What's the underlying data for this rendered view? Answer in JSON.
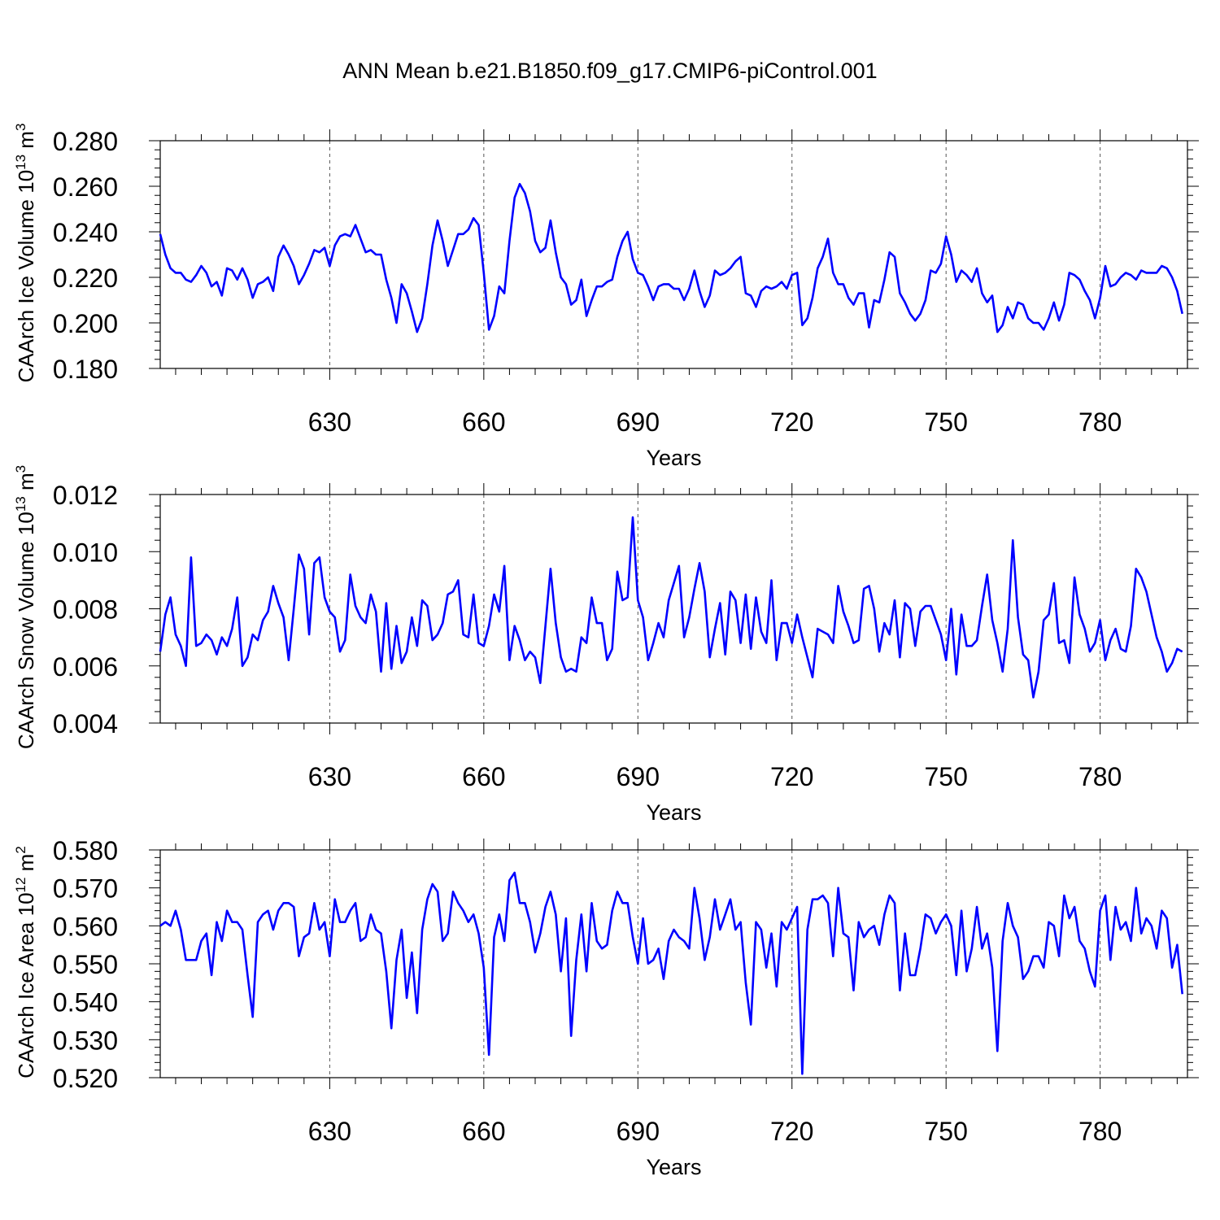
{
  "title": "ANN Mean b.e21.B1850.f09_g17.CMIP6-piControl.001",
  "colors": {
    "series": "#0000ff",
    "axis": "#000000",
    "grid": "#555555"
  },
  "chart_data": [
    {
      "type": "line",
      "ylabel": {
        "main": "CAArch Ice Volume 10",
        "sup": "13",
        "unit": " m",
        "unit_sup": "3"
      },
      "xlabel": "Years",
      "xlim": [
        597,
        797
      ],
      "ylim": [
        0.18,
        0.28
      ],
      "xticks": [
        630,
        660,
        690,
        720,
        750,
        780
      ],
      "yticks": [
        "0.180",
        "0.200",
        "0.220",
        "0.240",
        "0.260",
        "0.280"
      ],
      "grid": "vertical dashed at major x ticks",
      "series": [
        {
          "x_start": 597,
          "x_step": 1,
          "values": [
            0.239,
            0.23,
            0.224,
            0.222,
            0.222,
            0.219,
            0.218,
            0.221,
            0.225,
            0.222,
            0.216,
            0.218,
            0.212,
            0.224,
            0.223,
            0.219,
            0.224,
            0.219,
            0.211,
            0.217,
            0.218,
            0.22,
            0.214,
            0.229,
            0.234,
            0.23,
            0.225,
            0.217,
            0.221,
            0.226,
            0.232,
            0.231,
            0.233,
            0.225,
            0.234,
            0.238,
            0.239,
            0.238,
            0.243,
            0.237,
            0.231,
            0.232,
            0.23,
            0.23,
            0.219,
            0.211,
            0.2,
            0.217,
            0.213,
            0.205,
            0.196,
            0.202,
            0.217,
            0.234,
            0.245,
            0.236,
            0.225,
            0.232,
            0.239,
            0.239,
            0.241,
            0.246,
            0.243,
            0.222,
            0.197,
            0.203,
            0.216,
            0.213,
            0.236,
            0.255,
            0.261,
            0.257,
            0.249,
            0.236,
            0.231,
            0.233,
            0.245,
            0.231,
            0.22,
            0.217,
            0.208,
            0.21,
            0.219,
            0.203,
            0.21,
            0.216,
            0.216,
            0.218,
            0.219,
            0.229,
            0.236,
            0.24,
            0.228,
            0.222,
            0.221,
            0.216,
            0.21,
            0.216,
            0.217,
            0.217,
            0.215,
            0.215,
            0.21,
            0.215,
            0.223,
            0.214,
            0.207,
            0.212,
            0.223,
            0.221,
            0.222,
            0.224,
            0.227,
            0.229,
            0.213,
            0.212,
            0.207,
            0.214,
            0.216,
            0.215,
            0.216,
            0.218,
            0.215,
            0.221,
            0.222,
            0.199,
            0.202,
            0.211,
            0.224,
            0.229,
            0.237,
            0.222,
            0.217,
            0.217,
            0.211,
            0.208,
            0.213,
            0.213,
            0.198,
            0.21,
            0.209,
            0.219,
            0.231,
            0.229,
            0.213,
            0.209,
            0.204,
            0.201,
            0.204,
            0.21,
            0.223,
            0.222,
            0.226,
            0.238,
            0.23,
            0.218,
            0.223,
            0.221,
            0.218,
            0.224,
            0.213,
            0.209,
            0.212,
            0.196,
            0.199,
            0.207,
            0.202,
            0.209,
            0.208,
            0.202,
            0.2,
            0.2,
            0.197,
            0.202,
            0.209,
            0.201,
            0.208,
            0.222,
            0.221,
            0.219,
            0.214,
            0.21,
            0.202,
            0.211,
            0.225,
            0.216,
            0.217,
            0.22,
            0.222,
            0.221,
            0.219,
            0.223,
            0.222,
            0.222,
            0.222,
            0.225,
            0.224,
            0.22,
            0.214,
            0.204
          ]
        }
      ]
    },
    {
      "type": "line",
      "ylabel": {
        "main": "CAArch Snow Volume 10",
        "sup": "13",
        "unit": " m",
        "unit_sup": "3"
      },
      "xlabel": "Years",
      "xlim": [
        597,
        797
      ],
      "ylim": [
        0.004,
        0.012
      ],
      "xticks": [
        630,
        660,
        690,
        720,
        750,
        780
      ],
      "yticks": [
        "0.004",
        "0.006",
        "0.008",
        "0.010",
        "0.012"
      ],
      "grid": "vertical dashed at major x ticks",
      "series": [
        {
          "x_start": 597,
          "x_step": 1,
          "values": [
            0.0065,
            0.0078,
            0.0084,
            0.0071,
            0.0067,
            0.006,
            0.0098,
            0.0067,
            0.0068,
            0.0071,
            0.0069,
            0.0064,
            0.007,
            0.0067,
            0.0073,
            0.0084,
            0.006,
            0.0063,
            0.0071,
            0.0069,
            0.0076,
            0.0079,
            0.0088,
            0.0082,
            0.0077,
            0.0062,
            0.008,
            0.0099,
            0.0094,
            0.0071,
            0.0096,
            0.0098,
            0.0084,
            0.0079,
            0.0077,
            0.0065,
            0.0069,
            0.0092,
            0.0081,
            0.0077,
            0.0075,
            0.0085,
            0.0079,
            0.0058,
            0.0082,
            0.0059,
            0.0074,
            0.0061,
            0.0065,
            0.0077,
            0.0067,
            0.0083,
            0.0081,
            0.0069,
            0.0071,
            0.0075,
            0.0085,
            0.0086,
            0.009,
            0.0071,
            0.007,
            0.0085,
            0.0068,
            0.0067,
            0.0074,
            0.0085,
            0.0079,
            0.0095,
            0.0062,
            0.0074,
            0.0069,
            0.0062,
            0.0065,
            0.0063,
            0.0054,
            0.0074,
            0.0094,
            0.0075,
            0.0063,
            0.0058,
            0.0059,
            0.0058,
            0.007,
            0.0068,
            0.0084,
            0.0075,
            0.0075,
            0.0062,
            0.0066,
            0.0093,
            0.0083,
            0.0084,
            0.0112,
            0.0083,
            0.0077,
            0.0062,
            0.0068,
            0.0075,
            0.007,
            0.0083,
            0.0089,
            0.0095,
            0.007,
            0.0077,
            0.0087,
            0.0096,
            0.0086,
            0.0063,
            0.0073,
            0.0082,
            0.0064,
            0.0086,
            0.0083,
            0.0068,
            0.0085,
            0.0066,
            0.0084,
            0.0072,
            0.0068,
            0.009,
            0.0062,
            0.0075,
            0.0075,
            0.0068,
            0.0078,
            0.007,
            0.0063,
            0.0056,
            0.0073,
            0.0072,
            0.0071,
            0.0068,
            0.0088,
            0.0079,
            0.0074,
            0.0068,
            0.0069,
            0.0087,
            0.0088,
            0.008,
            0.0065,
            0.0075,
            0.0071,
            0.0083,
            0.0063,
            0.0082,
            0.008,
            0.0067,
            0.0079,
            0.0081,
            0.0081,
            0.0076,
            0.0071,
            0.0062,
            0.008,
            0.0057,
            0.0078,
            0.0067,
            0.0067,
            0.0069,
            0.0081,
            0.0092,
            0.0076,
            0.0068,
            0.0058,
            0.0073,
            0.0104,
            0.0077,
            0.0064,
            0.0062,
            0.0049,
            0.0058,
            0.0076,
            0.0078,
            0.0089,
            0.0068,
            0.0069,
            0.0061,
            0.0091,
            0.0078,
            0.0073,
            0.0065,
            0.0068,
            0.0076,
            0.0062,
            0.0069,
            0.0073,
            0.0066,
            0.0065,
            0.0074,
            0.0094,
            0.0091,
            0.0086,
            0.0078,
            0.007,
            0.0065,
            0.0058,
            0.0061,
            0.0066,
            0.0065
          ]
        }
      ]
    },
    {
      "type": "line",
      "ylabel": {
        "main": "CAArch Ice Area 10",
        "sup": "12",
        "unit": " m",
        "unit_sup": "2"
      },
      "xlabel": "Years",
      "xlim": [
        597,
        797
      ],
      "ylim": [
        0.52,
        0.58
      ],
      "xticks": [
        630,
        660,
        690,
        720,
        750,
        780
      ],
      "yticks": [
        "0.520",
        "0.530",
        "0.540",
        "0.550",
        "0.560",
        "0.570",
        "0.580"
      ],
      "grid": "vertical dashed at major x ticks",
      "series": [
        {
          "x_start": 597,
          "x_step": 1,
          "values": [
            0.56,
            0.561,
            0.56,
            0.564,
            0.559,
            0.551,
            0.551,
            0.551,
            0.556,
            0.558,
            0.547,
            0.561,
            0.556,
            0.564,
            0.561,
            0.561,
            0.559,
            0.547,
            0.536,
            0.561,
            0.563,
            0.564,
            0.559,
            0.564,
            0.566,
            0.566,
            0.565,
            0.552,
            0.557,
            0.558,
            0.566,
            0.559,
            0.561,
            0.552,
            0.567,
            0.561,
            0.561,
            0.564,
            0.566,
            0.556,
            0.557,
            0.563,
            0.559,
            0.558,
            0.548,
            0.533,
            0.551,
            0.559,
            0.541,
            0.553,
            0.537,
            0.559,
            0.567,
            0.571,
            0.569,
            0.556,
            0.558,
            0.569,
            0.566,
            0.564,
            0.561,
            0.563,
            0.558,
            0.549,
            0.526,
            0.557,
            0.563,
            0.556,
            0.572,
            0.574,
            0.566,
            0.566,
            0.561,
            0.553,
            0.558,
            0.565,
            0.569,
            0.563,
            0.548,
            0.562,
            0.531,
            0.551,
            0.563,
            0.548,
            0.566,
            0.556,
            0.554,
            0.555,
            0.564,
            0.569,
            0.566,
            0.566,
            0.557,
            0.55,
            0.562,
            0.55,
            0.551,
            0.554,
            0.546,
            0.556,
            0.559,
            0.557,
            0.556,
            0.554,
            0.57,
            0.562,
            0.551,
            0.557,
            0.567,
            0.559,
            0.563,
            0.567,
            0.559,
            0.561,
            0.545,
            0.534,
            0.561,
            0.559,
            0.549,
            0.558,
            0.544,
            0.561,
            0.559,
            0.562,
            0.565,
            0.521,
            0.559,
            0.567,
            0.567,
            0.568,
            0.566,
            0.552,
            0.57,
            0.558,
            0.557,
            0.543,
            0.561,
            0.557,
            0.559,
            0.56,
            0.555,
            0.563,
            0.568,
            0.566,
            0.543,
            0.558,
            0.547,
            0.547,
            0.554,
            0.563,
            0.562,
            0.558,
            0.561,
            0.563,
            0.56,
            0.547,
            0.564,
            0.548,
            0.554,
            0.565,
            0.554,
            0.558,
            0.549,
            0.527,
            0.556,
            0.566,
            0.56,
            0.557,
            0.546,
            0.548,
            0.552,
            0.552,
            0.549,
            0.561,
            0.56,
            0.552,
            0.568,
            0.562,
            0.565,
            0.556,
            0.554,
            0.548,
            0.544,
            0.564,
            0.568,
            0.551,
            0.565,
            0.559,
            0.561,
            0.556,
            0.57,
            0.558,
            0.562,
            0.56,
            0.554,
            0.564,
            0.562,
            0.549,
            0.555,
            0.542
          ]
        }
      ]
    }
  ]
}
